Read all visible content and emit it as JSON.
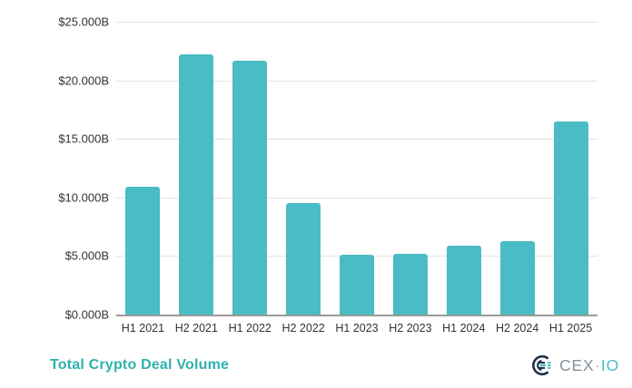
{
  "chart_data": {
    "type": "bar",
    "categories": [
      "H1 2021",
      "H2 2021",
      "H1 2022",
      "H2 2022",
      "H1 2023",
      "H2 2023",
      "H1 2024",
      "H2 2024",
      "H1 2025"
    ],
    "values": [
      10.9,
      22.2,
      21.7,
      9.5,
      5.1,
      5.2,
      5.9,
      6.3,
      16.5
    ],
    "title": "Total Crypto Deal Volume",
    "xlabel": "",
    "ylabel": "",
    "ylim": [
      0,
      25
    ],
    "yticks": [
      0,
      5,
      10,
      15,
      20,
      25
    ],
    "ytick_labels": [
      "$0.000B",
      "$5.000B",
      "$10.000B",
      "$15.000B",
      "$20.000B",
      "$25.000B"
    ],
    "grid": true,
    "legend": false
  },
  "footer": {
    "title": "Total Crypto Deal Volume",
    "brand_text": "CEX",
    "brand_separator": "·",
    "brand_suffix": "IO"
  },
  "icons": {
    "logo_mark": "cexio-c-mark-icon"
  },
  "colors": {
    "bar": "#4ABCC5",
    "title": "#2FB1AD",
    "axis_text": "#333333",
    "grid_line": "#E4E4E4",
    "axis_line": "#9A9A9A",
    "brand_navy": "#1E3246",
    "brand_teal": "#4ABCC5",
    "brand_gray": "#87929B"
  }
}
